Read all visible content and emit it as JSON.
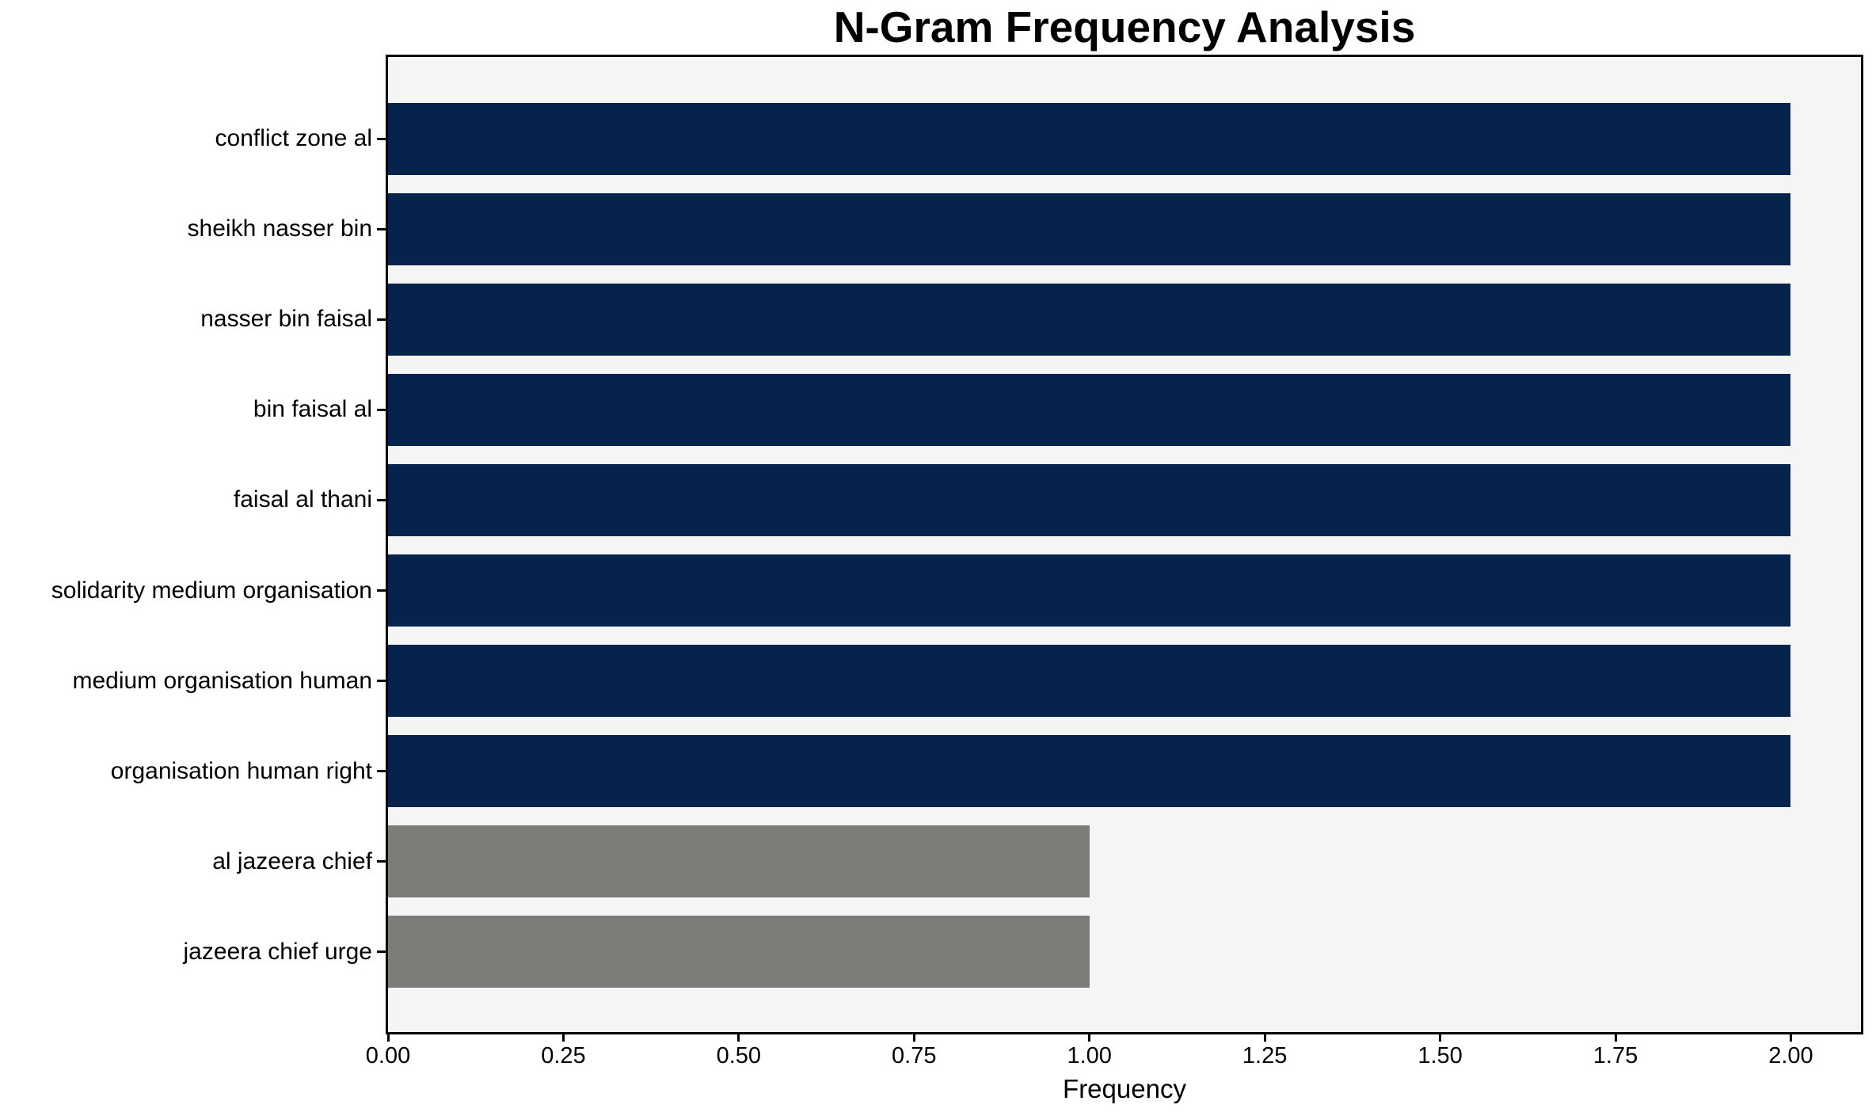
{
  "chart_data": {
    "type": "bar",
    "orientation": "horizontal",
    "title": "N-Gram Frequency Analysis",
    "xlabel": "Frequency",
    "ylabel": "",
    "categories": [
      "conflict zone al",
      "sheikh nasser bin",
      "nasser bin faisal",
      "bin faisal al",
      "faisal al thani",
      "solidarity medium organisation",
      "medium organisation human",
      "organisation human right",
      "al jazeera chief",
      "jazeera chief urge"
    ],
    "values": [
      2,
      2,
      2,
      2,
      2,
      2,
      2,
      2,
      1,
      1
    ],
    "bar_colors": [
      "#06234b",
      "#06234b",
      "#06234b",
      "#06234b",
      "#06234b",
      "#06234b",
      "#06234b",
      "#06234b",
      "#7c7c79",
      "#7c7c79"
    ],
    "xlim": [
      0,
      2.1
    ],
    "x_ticks": [
      {
        "value": 0.0,
        "label": "0.00"
      },
      {
        "value": 0.25,
        "label": "0.25"
      },
      {
        "value": 0.5,
        "label": "0.50"
      },
      {
        "value": 0.75,
        "label": "0.75"
      },
      {
        "value": 1.0,
        "label": "1.00"
      },
      {
        "value": 1.25,
        "label": "1.25"
      },
      {
        "value": 1.5,
        "label": "1.50"
      },
      {
        "value": 1.75,
        "label": "1.75"
      },
      {
        "value": 2.0,
        "label": "2.00"
      }
    ],
    "grid": false,
    "legend": null,
    "plot_background": "#f5f5f6",
    "figure_background": "#ffffff",
    "frame_color": "#000000"
  }
}
